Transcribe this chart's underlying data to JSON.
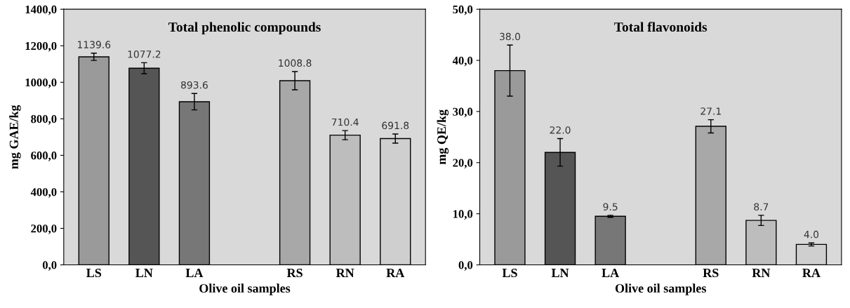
{
  "chart_data": [
    {
      "type": "bar",
      "title": "Total phenolic compounds",
      "xlabel": "Olive oil samples",
      "ylabel": "mg GAE/kg",
      "categories": [
        "LS",
        "LN",
        "LA",
        null,
        "RS",
        "RN",
        "RA"
      ],
      "values": [
        1139.6,
        1077.2,
        893.6,
        null,
        1008.8,
        710.4,
        691.8
      ],
      "errors": [
        20,
        30,
        45,
        null,
        50,
        25,
        25
      ],
      "colors": [
        "#9a9a9a",
        "#555555",
        "#777777",
        "#ffffff",
        "#a8a8a8",
        "#bdbdbd",
        "#cfcfcf"
      ],
      "value_labels": [
        "1139.6",
        "1077.2",
        "893.6",
        null,
        "1008.8",
        "710.4",
        "691.8"
      ],
      "grid": false,
      "ylim": [
        0,
        1400
      ],
      "yticks": [
        {
          "value": 0,
          "label": "0,0"
        },
        {
          "value": 200,
          "label": "200,0"
        },
        {
          "value": 400,
          "label": "400,0"
        },
        {
          "value": 600,
          "label": "600,0"
        },
        {
          "value": 800,
          "label": "800,0"
        },
        {
          "value": 1000,
          "label": "1000,0"
        },
        {
          "value": 1200,
          "label": "1200,0"
        },
        {
          "value": 1400,
          "label": "1400,0"
        }
      ]
    },
    {
      "type": "bar",
      "title": "Total flavonoids",
      "xlabel": "Olive oil samples",
      "ylabel": "mg QE/kg",
      "categories": [
        "LS",
        "LN",
        "LA",
        null,
        "RS",
        "RN",
        "RA"
      ],
      "values": [
        38.0,
        22.0,
        9.5,
        null,
        27.1,
        8.7,
        4.0
      ],
      "errors": [
        5,
        2.7,
        0.2,
        null,
        1.3,
        1.0,
        0.3
      ],
      "colors": [
        "#9a9a9a",
        "#555555",
        "#777777",
        "#ffffff",
        "#a8a8a8",
        "#bdbdbd",
        "#cfcfcf"
      ],
      "value_labels": [
        "38.0",
        "22.0",
        "9.5",
        null,
        "27.1",
        "8.7",
        "4.0"
      ],
      "grid": false,
      "ylim": [
        0,
        50
      ],
      "yticks": [
        {
          "value": 0,
          "label": "0,0"
        },
        {
          "value": 10,
          "label": "10,0"
        },
        {
          "value": 20,
          "label": "20,0"
        },
        {
          "value": 30,
          "label": "30,0"
        },
        {
          "value": 40,
          "label": "40,0"
        },
        {
          "value": 50,
          "label": "50,0"
        }
      ]
    }
  ]
}
